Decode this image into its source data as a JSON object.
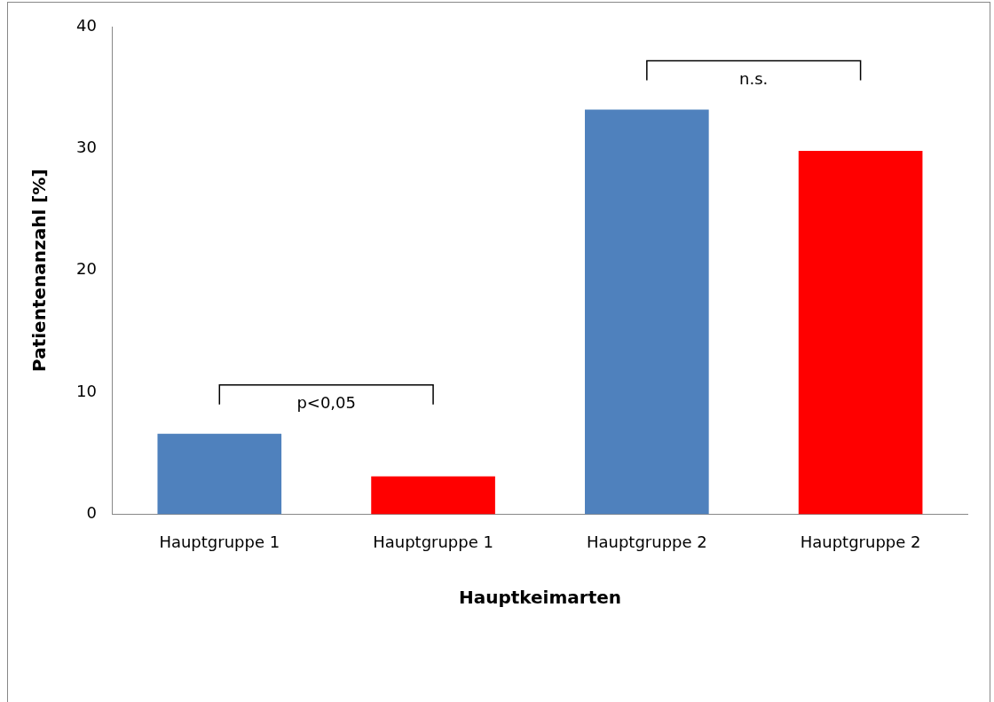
{
  "chart_data": {
    "type": "bar",
    "xlabel": "Hauptkeimarten",
    "ylabel": "Patientenanzahl [%]",
    "categories": [
      "Hauptgruppe 1",
      "Hauptgruppe 1",
      "Hauptgruppe 2",
      "Hauptgruppe 2"
    ],
    "values": [
      6.6,
      3.1,
      33.2,
      29.8
    ],
    "colors": [
      "#4f81bd",
      "#ff0000",
      "#4f81bd",
      "#ff0000"
    ],
    "ylim": [
      0,
      40
    ],
    "yticks": [
      0,
      10,
      20,
      30,
      40
    ],
    "grid": false,
    "legend": false,
    "annotations": [
      "p<0,05",
      "n.s."
    ]
  }
}
